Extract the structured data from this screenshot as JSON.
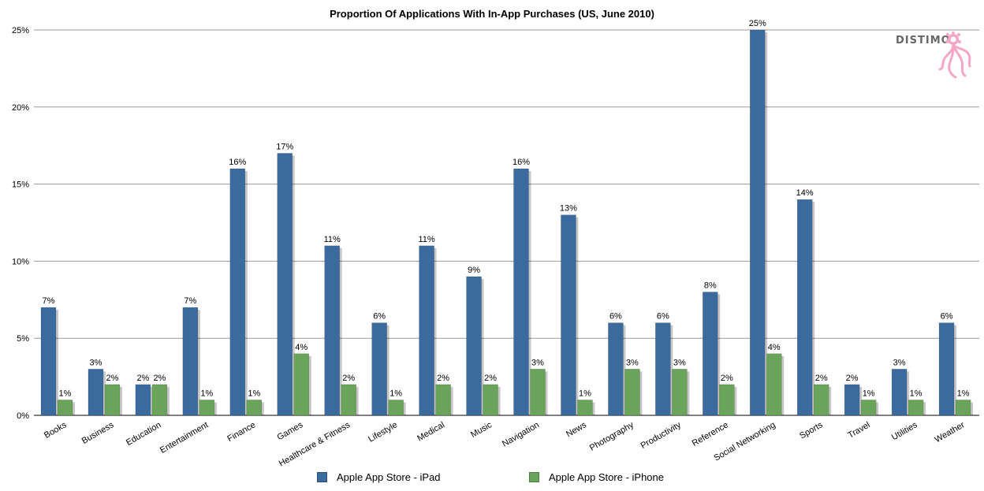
{
  "chart_data": {
    "type": "bar",
    "title": "Proportion Of Applications With In-App Purchases (US, June 2010)",
    "categories": [
      "Books",
      "Business",
      "Education",
      "Entertainment",
      "Finance",
      "Games",
      "Healthcare & Fitness",
      "Lifestyle",
      "Medical",
      "Music",
      "Navigation",
      "News",
      "Photography",
      "Productivity",
      "Reference",
      "Social Networking",
      "Sports",
      "Travel",
      "Utilities",
      "Weather"
    ],
    "series": [
      {
        "name": "Apple App Store - iPad",
        "color": "#3a6a9e",
        "values": [
          7,
          3,
          2,
          7,
          16,
          17,
          11,
          6,
          11,
          9,
          16,
          13,
          6,
          6,
          8,
          25,
          14,
          2,
          3,
          6
        ]
      },
      {
        "name": "Apple App Store - iPhone",
        "color": "#6aa35a",
        "values": [
          1,
          2,
          2,
          1,
          1,
          4,
          2,
          1,
          2,
          2,
          3,
          1,
          3,
          3,
          2,
          4,
          2,
          1,
          1,
          1
        ]
      }
    ],
    "ylim": [
      0,
      25
    ],
    "yticks": [
      "0%",
      "5%",
      "10%",
      "15%",
      "20%",
      "25%"
    ],
    "value_suffix": "%",
    "grid": true,
    "legend": "bottom"
  },
  "logo": {
    "text": "DISTIMO",
    "icon": "octopus-icon",
    "color": "#f4a6c6"
  }
}
